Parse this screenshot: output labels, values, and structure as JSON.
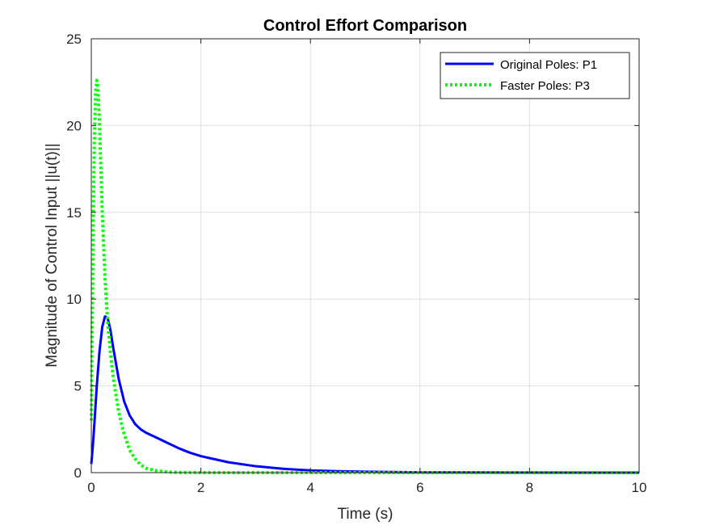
{
  "chart_data": {
    "type": "line",
    "title": "Control Effort Comparison",
    "xlabel": "Time (s)",
    "ylabel": "Magnitude of Control Input ||u(t)||",
    "xlim": [
      0,
      10
    ],
    "ylim": [
      0,
      25
    ],
    "xticks": [
      0,
      2,
      4,
      6,
      8,
      10
    ],
    "yticks": [
      0,
      5,
      10,
      15,
      20,
      25
    ],
    "grid": true,
    "legend_position": "top-right",
    "series": [
      {
        "name": "Original Poles: P1",
        "color": "#0000ff",
        "style": "solid",
        "x": [
          0.0,
          0.03,
          0.06,
          0.1,
          0.15,
          0.2,
          0.25,
          0.3,
          0.35,
          0.4,
          0.5,
          0.6,
          0.7,
          0.8,
          0.9,
          1.0,
          1.2,
          1.4,
          1.6,
          1.8,
          2.0,
          2.5,
          3.0,
          3.5,
          4.0,
          4.5,
          5.0,
          6.0,
          7.0,
          8.0,
          9.0,
          10.0
        ],
        "values": [
          0.5,
          1.6,
          3.0,
          5.0,
          7.0,
          8.4,
          9.0,
          8.9,
          8.2,
          7.2,
          5.4,
          4.1,
          3.3,
          2.8,
          2.5,
          2.3,
          2.0,
          1.7,
          1.4,
          1.15,
          0.95,
          0.6,
          0.37,
          0.22,
          0.13,
          0.08,
          0.05,
          0.02,
          0.01,
          0.005,
          0.0,
          0.0
        ]
      },
      {
        "name": "Faster Poles: P3",
        "color": "#00ff00",
        "style": "dotted",
        "x": [
          0.0,
          0.02,
          0.04,
          0.06,
          0.08,
          0.1,
          0.12,
          0.14,
          0.17,
          0.2,
          0.25,
          0.3,
          0.35,
          0.4,
          0.5,
          0.6,
          0.7,
          0.8,
          0.9,
          1.0,
          1.2,
          1.4,
          1.6,
          2.0,
          3.0,
          4.0,
          6.0,
          8.0,
          10.0
        ],
        "values": [
          3.0,
          9.5,
          15.5,
          19.8,
          22.0,
          22.6,
          22.2,
          20.8,
          18.0,
          15.0,
          11.2,
          8.6,
          6.9,
          5.5,
          3.5,
          2.2,
          1.3,
          0.8,
          0.45,
          0.25,
          0.1,
          0.04,
          0.01,
          0.0,
          0.0,
          0.0,
          0.0,
          0.0,
          0.0
        ]
      }
    ]
  }
}
